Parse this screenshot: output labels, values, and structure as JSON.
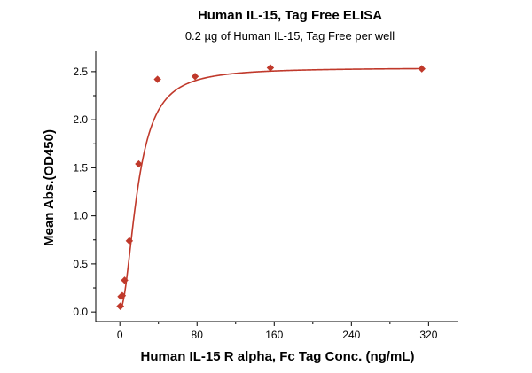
{
  "chart_data": {
    "type": "scatter",
    "title": "Human IL-15, Tag Free ELISA",
    "subtitle": "0.2 µg of Human IL-15, Tag Free per well",
    "xlabel": "Human IL-15 R alpha, Fc Tag Conc. (ng/mL)",
    "ylabel": "Mean Abs.(OD450)",
    "xlim": [
      -25,
      350
    ],
    "ylim": [
      -0.1,
      2.72
    ],
    "xticks": [
      0,
      80,
      160,
      240,
      320
    ],
    "xtick_labels": [
      "0",
      "80",
      "160",
      "240",
      "320"
    ],
    "yticks": [
      0.0,
      0.5,
      1.0,
      1.5,
      2.0,
      2.5
    ],
    "ytick_labels": [
      "0.0",
      "0.5",
      "1.0",
      "1.5",
      "2.0",
      "2.5"
    ],
    "grid": false,
    "legend": "none",
    "series": [
      {
        "color": "#c0392b",
        "marker": "diamond",
        "fit": "four-parameter logistic curve",
        "points": [
          {
            "x": 0.3,
            "y": 0.06
          },
          {
            "x": 0.6,
            "y": 0.06
          },
          {
            "x": 1.2,
            "y": 0.16
          },
          {
            "x": 2.5,
            "y": 0.17
          },
          {
            "x": 4.9,
            "y": 0.33
          },
          {
            "x": 9.8,
            "y": 0.74
          },
          {
            "x": 19.5,
            "y": 1.54
          },
          {
            "x": 39,
            "y": 2.42
          },
          {
            "x": 78,
            "y": 2.45
          },
          {
            "x": 156,
            "y": 2.54
          },
          {
            "x": 313,
            "y": 2.53
          }
        ]
      }
    ]
  }
}
